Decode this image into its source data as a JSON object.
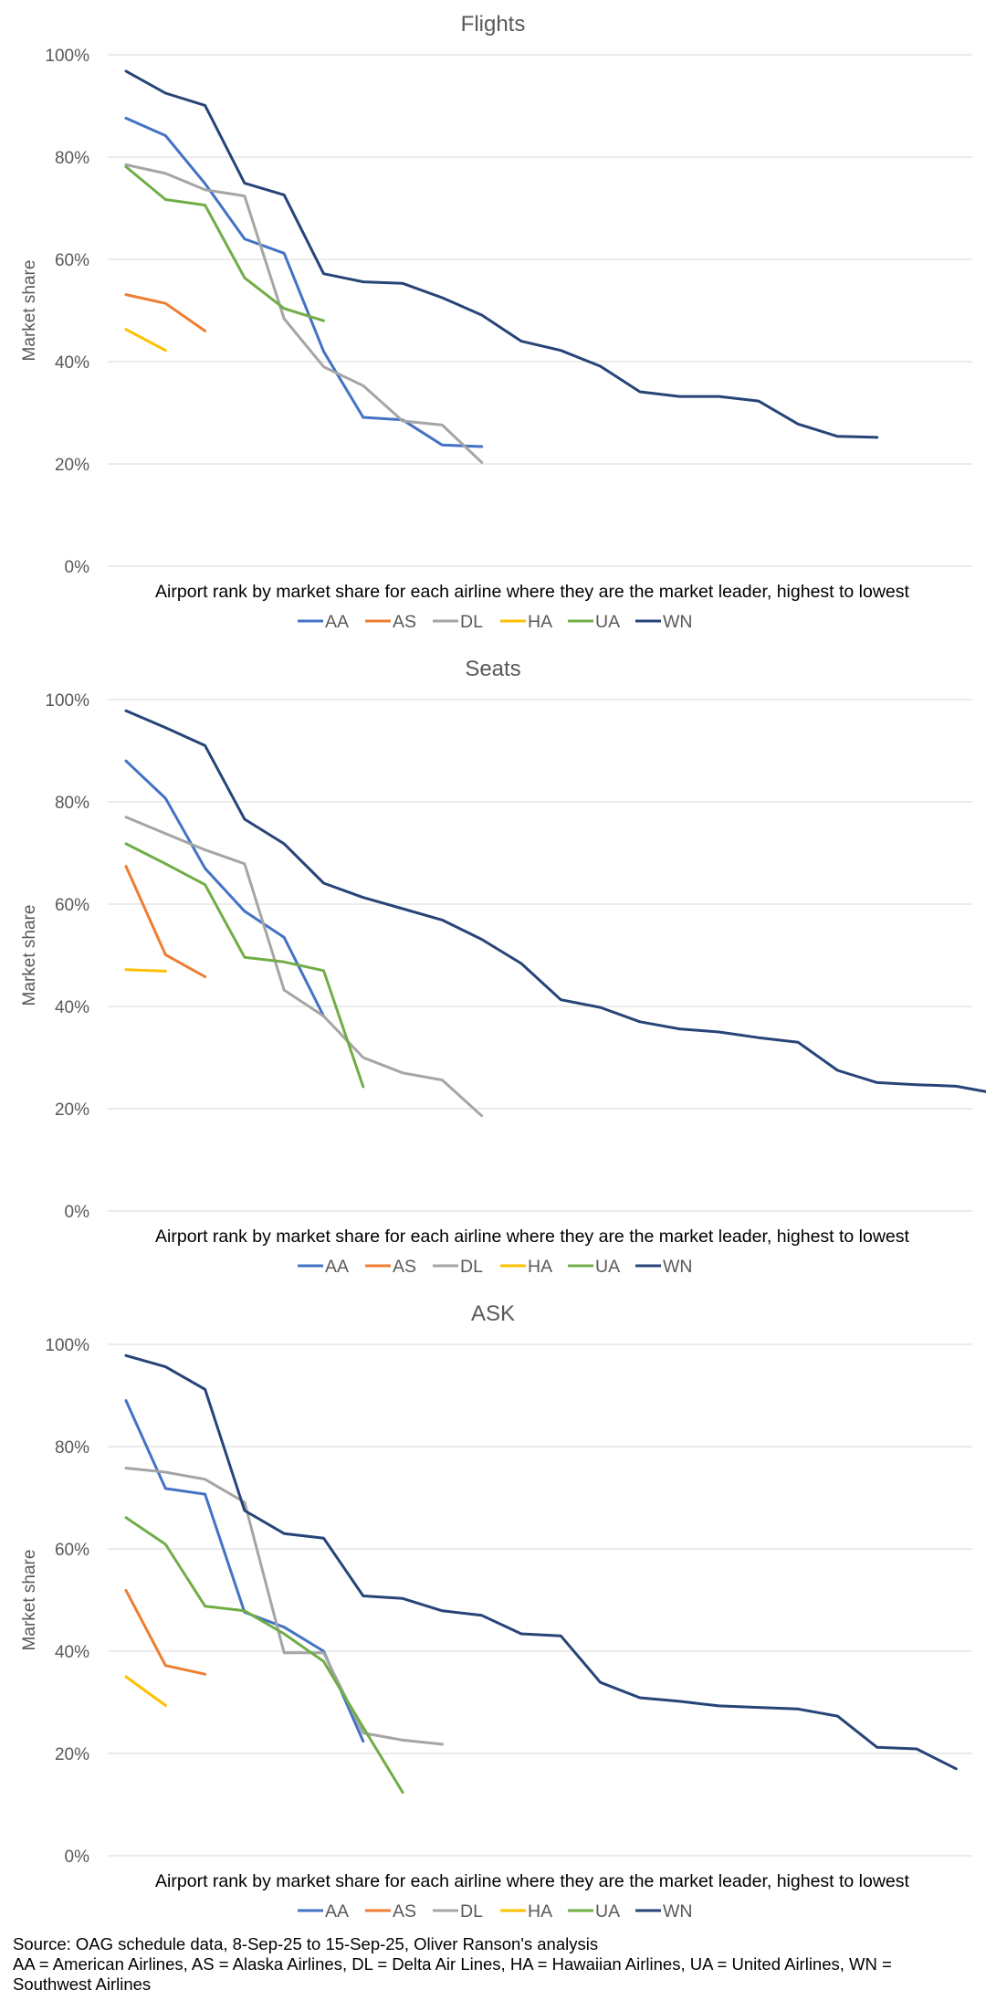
{
  "colors": {
    "AA": "#4472c4",
    "AS": "#ed7d31",
    "DL": "#a5a5a5",
    "HA": "#ffc000",
    "UA": "#70ad47",
    "WN": "#264478"
  },
  "chart_data": [
    {
      "type": "line",
      "title": "Flights",
      "xlabel": "Airport rank by market share for each airline where they are the market leader, highest to lowest",
      "ylabel": "Market share",
      "ylim": [
        0,
        100
      ],
      "yticks": [
        "0%",
        "20%",
        "40%",
        "60%",
        "80%",
        "100%"
      ],
      "x_count": 24,
      "grid": true,
      "legend": "bottom",
      "series": [
        {
          "name": "AA",
          "values": [
            87.6,
            84.2,
            74.8,
            64.0,
            61.2,
            42.0,
            29.1,
            28.6,
            23.7,
            23.4
          ]
        },
        {
          "name": "AS",
          "values": [
            53.1,
            51.4,
            46.0
          ]
        },
        {
          "name": "DL",
          "values": [
            78.5,
            76.8,
            73.6,
            72.4,
            48.4,
            39.0,
            35.3,
            28.4,
            27.6,
            20.3
          ]
        },
        {
          "name": "HA",
          "values": [
            46.3,
            42.2
          ]
        },
        {
          "name": "UA",
          "values": [
            78.1,
            71.7,
            70.6,
            56.4,
            50.4,
            48.0
          ]
        },
        {
          "name": "WN",
          "values": [
            96.8,
            92.5,
            90.1,
            74.9,
            72.6,
            57.2,
            55.6,
            55.3,
            52.5,
            49.1,
            44.0,
            42.2,
            39.1,
            34.1,
            33.2,
            33.2,
            32.3,
            27.8,
            25.4,
            25.2
          ]
        }
      ]
    },
    {
      "type": "line",
      "title": "Seats",
      "xlabel": "Airport rank by market share for each airline where they are the market leader, highest to lowest",
      "ylabel": "Market share",
      "ylim": [
        0,
        100
      ],
      "yticks": [
        "0%",
        "20%",
        "40%",
        "60%",
        "80%",
        "100%"
      ],
      "x_count": 24,
      "grid": true,
      "legend": "bottom",
      "series": [
        {
          "name": "AA",
          "values": [
            88.0,
            80.7,
            67.0,
            58.6,
            53.5,
            38.1
          ]
        },
        {
          "name": "AS",
          "values": [
            67.4,
            50.1,
            45.8
          ]
        },
        {
          "name": "DL",
          "values": [
            77.0,
            73.8,
            70.6,
            67.9,
            43.2,
            38.1,
            30.0,
            27.0,
            25.6,
            18.6
          ]
        },
        {
          "name": "HA",
          "values": [
            47.2,
            46.9
          ]
        },
        {
          "name": "UA",
          "values": [
            71.8,
            67.9,
            63.8,
            49.6,
            48.7,
            47.0,
            24.3
          ]
        },
        {
          "name": "WN",
          "values": [
            97.8,
            94.5,
            91.0,
            76.6,
            71.8,
            64.1,
            61.3,
            59.1,
            56.9,
            53.1,
            48.4,
            41.3,
            39.8,
            37.0,
            35.6,
            35.0,
            33.9,
            33.0,
            27.5,
            25.1,
            24.7,
            24.4,
            23.0
          ]
        }
      ]
    },
    {
      "type": "line",
      "title": "ASK",
      "xlabel": "Airport rank by market share for each airline where they are the market leader, highest to lowest",
      "ylabel": "Market share",
      "ylim": [
        0,
        100
      ],
      "yticks": [
        "0%",
        "20%",
        "40%",
        "60%",
        "80%",
        "100%"
      ],
      "x_count": 24,
      "grid": true,
      "legend": "bottom",
      "series": [
        {
          "name": "AA",
          "values": [
            89.0,
            71.8,
            70.7,
            47.6,
            44.7,
            40.0,
            22.4
          ]
        },
        {
          "name": "AS",
          "values": [
            51.9,
            37.2,
            35.5
          ]
        },
        {
          "name": "DL",
          "values": [
            75.8,
            75.0,
            73.6,
            69.1,
            39.7,
            39.7,
            24.0,
            22.6,
            21.8
          ]
        },
        {
          "name": "HA",
          "values": [
            35.0,
            29.4
          ]
        },
        {
          "name": "UA",
          "values": [
            66.1,
            60.9,
            48.8,
            47.9,
            43.4,
            38.0,
            25.1,
            12.4
          ]
        },
        {
          "name": "WN",
          "values": [
            97.8,
            95.6,
            91.2,
            67.5,
            63.0,
            62.1,
            50.8,
            50.3,
            47.9,
            47.0,
            43.4,
            43.0,
            33.9,
            30.9,
            30.2,
            29.3,
            29.0,
            28.7,
            27.3,
            21.2,
            20.9,
            17.0
          ]
        }
      ]
    }
  ],
  "footnote": {
    "source": "Source: OAG schedule data, 8-Sep-25 to 15-Sep-25, Oliver Ranson's analysis",
    "abbreviations": "AA = American Airlines, AS = Alaska Airlines, DL = Delta Air Lines, HA = Hawaiian Airlines, UA = United Airlines, WN = Southwest Airlines"
  }
}
